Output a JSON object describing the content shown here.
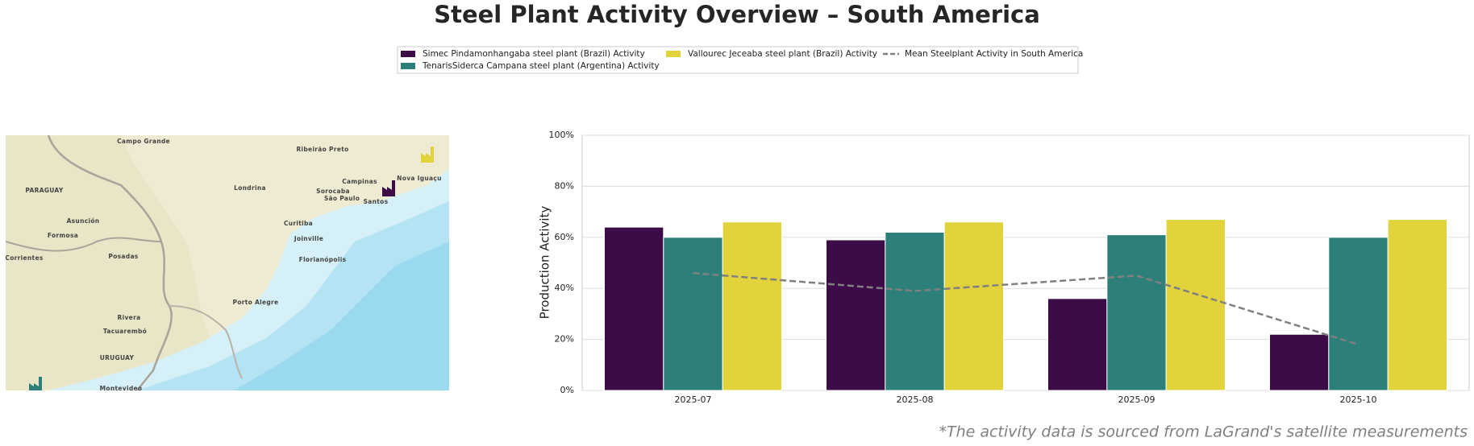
{
  "chart_data": {
    "type": "bar",
    "title": "Steel Plant Activity Overview – South America",
    "y_label": "Production Activity",
    "note": "*The activity data is sourced from LaGrand's satellite measurements",
    "categories": [
      "2025-07",
      "2025-08",
      "2025-09",
      "2025-10"
    ],
    "series": [
      {
        "name": "Simec Pindamonhangaba steel plant (Brazil) Activity",
        "color": "#3d0b47",
        "values": [
          64,
          59,
          36,
          22
        ]
      },
      {
        "name": "TenarisSiderca Campana steel plant (Argentina) Activity",
        "color": "#2c8079",
        "values": [
          60,
          62,
          61,
          60
        ]
      },
      {
        "name": "Vallourec Jeceaba steel plant (Brazil) Activity",
        "color": "#e2d33c",
        "values": [
          66,
          66,
          67,
          67
        ]
      },
      {
        "name": "Mean Steelplant Activity in South America",
        "color": "#808080",
        "type": "line",
        "dashed": true,
        "values": [
          46,
          39,
          45,
          18
        ]
      }
    ],
    "ylim": [
      0,
      100
    ],
    "yticks": [
      {
        "value": 0,
        "label": "0%"
      },
      {
        "value": 20,
        "label": "20%"
      },
      {
        "value": 40,
        "label": "40%"
      },
      {
        "value": 60,
        "label": "60%"
      },
      {
        "value": 80,
        "label": "80%"
      },
      {
        "value": 100,
        "label": "100%"
      }
    ],
    "grid": true
  },
  "map": {
    "labels": [
      "Campo Grande",
      "Ribeirão Preto",
      "PARAGUAY",
      "Londrina",
      "Campinas",
      "Nova Iguaçu",
      "Sorocaba",
      "São Paulo",
      "Santos",
      "Asunción",
      "Curitiba",
      "Joinville",
      "Formosa",
      "Posadas",
      "Corrientes",
      "Florianópolis",
      "Porto Alegre",
      "Rivera",
      "Tacuarembó",
      "URUGUAY",
      "Montevideo"
    ]
  }
}
